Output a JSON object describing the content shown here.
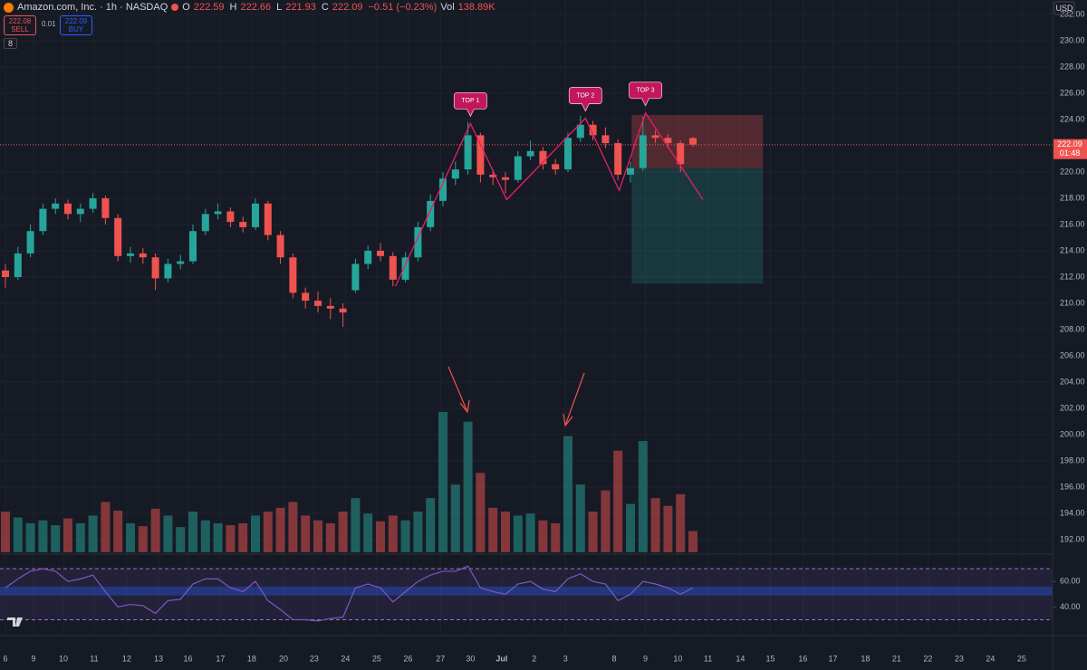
{
  "header": {
    "symbol": "Amazon.com, Inc. · 1h · NASDAQ",
    "ohlc": [
      {
        "label": "O",
        "value": "222.59"
      },
      {
        "label": "H",
        "value": "222.66"
      },
      {
        "label": "L",
        "value": "221.93"
      },
      {
        "label": "C",
        "value": "222.09"
      }
    ],
    "change": "−0.51 (−0.23%)",
    "vol_label": "Vol",
    "vol_value": "138.89K",
    "sell_price": "222.08",
    "sell_label": "SELL",
    "spread": "0.01",
    "buy_price": "222.09",
    "buy_label": "BUY",
    "badge": "8",
    "currency": "USD"
  },
  "chart_data": {
    "type": "candlestick",
    "up_color": "#26a69a",
    "down_color": "#ef5350",
    "candles": [
      [
        212.5,
        213.0,
        211.2,
        212.0
      ],
      [
        212.0,
        214.3,
        211.8,
        213.8
      ],
      [
        213.8,
        216.0,
        213.5,
        215.5
      ],
      [
        215.5,
        217.6,
        215.2,
        217.2
      ],
      [
        217.2,
        218.0,
        216.8,
        217.6
      ],
      [
        217.6,
        217.9,
        216.4,
        216.8
      ],
      [
        216.8,
        217.6,
        216.2,
        217.2
      ],
      [
        217.2,
        218.4,
        216.9,
        218.0
      ],
      [
        218.0,
        218.2,
        216.0,
        216.5
      ],
      [
        216.5,
        216.8,
        213.2,
        213.6
      ],
      [
        213.6,
        214.3,
        213.1,
        213.8
      ],
      [
        213.8,
        214.2,
        213.0,
        213.5
      ],
      [
        213.5,
        213.8,
        211.0,
        211.9
      ],
      [
        211.9,
        213.4,
        211.6,
        213.0
      ],
      [
        213.0,
        213.7,
        212.6,
        213.2
      ],
      [
        213.2,
        216.0,
        213.0,
        215.5
      ],
      [
        215.5,
        217.2,
        215.2,
        216.8
      ],
      [
        216.8,
        217.6,
        216.4,
        217.0
      ],
      [
        217.0,
        217.3,
        215.8,
        216.2
      ],
      [
        216.2,
        216.6,
        215.4,
        215.8
      ],
      [
        215.8,
        218.0,
        215.6,
        217.6
      ],
      [
        217.6,
        217.8,
        214.8,
        215.2
      ],
      [
        215.2,
        215.5,
        213.0,
        213.5
      ],
      [
        213.5,
        213.8,
        210.4,
        210.8
      ],
      [
        210.8,
        211.2,
        209.6,
        210.2
      ],
      [
        210.2,
        210.9,
        209.3,
        209.8
      ],
      [
        209.8,
        210.4,
        208.8,
        209.6
      ],
      [
        209.6,
        210.0,
        208.2,
        209.3
      ],
      [
        211.0,
        213.4,
        210.8,
        213.0
      ],
      [
        213.0,
        214.4,
        212.6,
        214.0
      ],
      [
        214.0,
        214.6,
        213.2,
        213.6
      ],
      [
        213.6,
        213.9,
        211.3,
        211.8
      ],
      [
        211.8,
        213.9,
        211.6,
        213.5
      ],
      [
        213.5,
        216.2,
        213.2,
        215.8
      ],
      [
        215.8,
        218.3,
        215.5,
        217.8
      ],
      [
        217.8,
        220.0,
        217.4,
        219.5
      ],
      [
        219.5,
        220.8,
        219.0,
        220.2
      ],
      [
        220.2,
        223.8,
        219.8,
        222.8
      ],
      [
        222.8,
        223.0,
        219.2,
        219.8
      ],
      [
        219.8,
        220.2,
        219.0,
        219.6
      ],
      [
        219.6,
        220.0,
        218.4,
        219.4
      ],
      [
        219.4,
        221.6,
        219.2,
        221.2
      ],
      [
        221.2,
        222.4,
        220.9,
        221.6
      ],
      [
        221.6,
        221.9,
        220.2,
        220.6
      ],
      [
        220.6,
        221.0,
        219.8,
        220.2
      ],
      [
        220.2,
        223.0,
        220.0,
        222.6
      ],
      [
        222.6,
        224.3,
        222.3,
        223.6
      ],
      [
        223.6,
        223.9,
        222.4,
        222.8
      ],
      [
        222.8,
        223.4,
        221.8,
        222.2
      ],
      [
        222.2,
        222.5,
        219.4,
        219.8
      ],
      [
        219.8,
        220.8,
        219.2,
        220.3
      ],
      [
        220.3,
        224.2,
        220.1,
        222.8
      ],
      [
        222.8,
        223.2,
        222.2,
        222.6
      ],
      [
        222.6,
        222.9,
        221.8,
        222.2
      ],
      [
        222.2,
        222.4,
        220.0,
        220.6
      ],
      [
        222.59,
        222.66,
        221.93,
        222.09
      ]
    ],
    "volume": [
      420,
      360,
      300,
      330,
      280,
      350,
      300,
      380,
      520,
      430,
      300,
      270,
      450,
      380,
      260,
      420,
      330,
      300,
      280,
      300,
      380,
      420,
      460,
      520,
      380,
      330,
      300,
      420,
      560,
      400,
      320,
      380,
      330,
      420,
      560,
      1450,
      700,
      1350,
      820,
      460,
      420,
      380,
      400,
      330,
      300,
      1200,
      700,
      420,
      640,
      1050,
      500,
      1150,
      560,
      480,
      600,
      220
    ],
    "ylim": [
      192,
      232
    ],
    "yticks": [
      {
        "value": 192,
        "label": "192.00"
      },
      {
        "value": 194,
        "label": "194.00"
      },
      {
        "value": 196,
        "label": "196.00"
      },
      {
        "value": 198,
        "label": "198.00"
      },
      {
        "value": 200,
        "label": "200.00"
      },
      {
        "value": 202,
        "label": "202.00"
      },
      {
        "value": 204,
        "label": "204.00"
      },
      {
        "value": 206,
        "label": "206.00"
      },
      {
        "value": 208,
        "label": "208.00"
      },
      {
        "value": 210,
        "label": "210.00"
      },
      {
        "value": 212,
        "label": "212.00"
      },
      {
        "value": 214,
        "label": "214.00"
      },
      {
        "value": 216,
        "label": "216.00"
      },
      {
        "value": 218,
        "label": "218.00"
      },
      {
        "value": 220,
        "label": "220.00"
      },
      {
        "value": 222,
        "label": "222.00"
      },
      {
        "value": 224,
        "label": "224.00"
      },
      {
        "value": 226,
        "label": "226.00"
      },
      {
        "value": 228,
        "label": "228.00"
      },
      {
        "value": 230,
        "label": "230.00"
      },
      {
        "value": 232,
        "label": "232.00"
      }
    ],
    "xticks": [
      {
        "value": 0,
        "label": "6"
      },
      {
        "value": 2.25,
        "label": "9"
      },
      {
        "value": 4.64,
        "label": "10"
      },
      {
        "value": 7.1,
        "label": "11"
      },
      {
        "value": 9.7,
        "label": "12"
      },
      {
        "value": 12.25,
        "label": "13"
      },
      {
        "value": 14.6,
        "label": "16"
      },
      {
        "value": 17.2,
        "label": "17"
      },
      {
        "value": 19.7,
        "label": "18"
      },
      {
        "value": 22.25,
        "label": "20"
      },
      {
        "value": 24.7,
        "label": "23"
      },
      {
        "value": 27.2,
        "label": "24"
      },
      {
        "value": 29.7,
        "label": "25"
      },
      {
        "value": 32.2,
        "label": "26"
      },
      {
        "value": 34.8,
        "label": "27"
      },
      {
        "value": 37.2,
        "label": "30"
      },
      {
        "value": 39.7,
        "label": "Jul"
      },
      {
        "value": 42.3,
        "label": "2"
      },
      {
        "value": 44.8,
        "label": "3"
      },
      {
        "value": 48.7,
        "label": "8"
      },
      {
        "value": 51.2,
        "label": "9"
      },
      {
        "value": 53.8,
        "label": "10"
      },
      {
        "value": 56.2,
        "label": "11"
      },
      {
        "value": 58.8,
        "label": "14"
      },
      {
        "value": 61.2,
        "label": "15"
      },
      {
        "value": 63.8,
        "label": "16"
      },
      {
        "value": 66.2,
        "label": "17"
      },
      {
        "value": 68.8,
        "label": "18"
      },
      {
        "value": 71.3,
        "label": "21"
      },
      {
        "value": 73.8,
        "label": "22"
      },
      {
        "value": 76.3,
        "label": "23"
      },
      {
        "value": 78.8,
        "label": "24"
      },
      {
        "value": 81.3,
        "label": "25"
      }
    ],
    "last_price": 222.09,
    "countdown": "01:48",
    "pattern": {
      "color": "#e91e63",
      "x": [
        31.2,
        37.2,
        40.1,
        46.4,
        49.1,
        51.2,
        55.8
      ],
      "y": [
        211.3,
        223.7,
        217.9,
        224.1,
        218.6,
        224.5,
        217.9
      ]
    },
    "annotations": [
      {
        "text": "TOP 1",
        "x": 37.2,
        "y": 223.7
      },
      {
        "text": "TOP 2",
        "x": 46.4,
        "y": 224.1
      },
      {
        "text": "TOP 3",
        "x": 51.2,
        "y": 224.5
      }
    ],
    "position": {
      "start": 50.1,
      "end": 60.6,
      "stop": 224.35,
      "entry": 220.28,
      "target": 211.5
    },
    "rsi": {
      "values": [
        55,
        62,
        68,
        70,
        68,
        60,
        62,
        65,
        52,
        40,
        42,
        41,
        35,
        45,
        46,
        58,
        62,
        62,
        55,
        52,
        60,
        45,
        38,
        30,
        30,
        29,
        31,
        32,
        55,
        58,
        55,
        44,
        52,
        60,
        65,
        68,
        68,
        72,
        55,
        52,
        50,
        58,
        60,
        54,
        52,
        62,
        66,
        60,
        58,
        45,
        50,
        60,
        58,
        55,
        50,
        55
      ],
      "color": "#7e57c2",
      "ylim": [
        19,
        80
      ],
      "upper": 70,
      "lower": 30,
      "midband": [
        49,
        56
      ],
      "yticks": [
        {
          "value": 40,
          "label": "40.00"
        },
        {
          "value": 60,
          "label": "60.00"
        }
      ]
    }
  }
}
